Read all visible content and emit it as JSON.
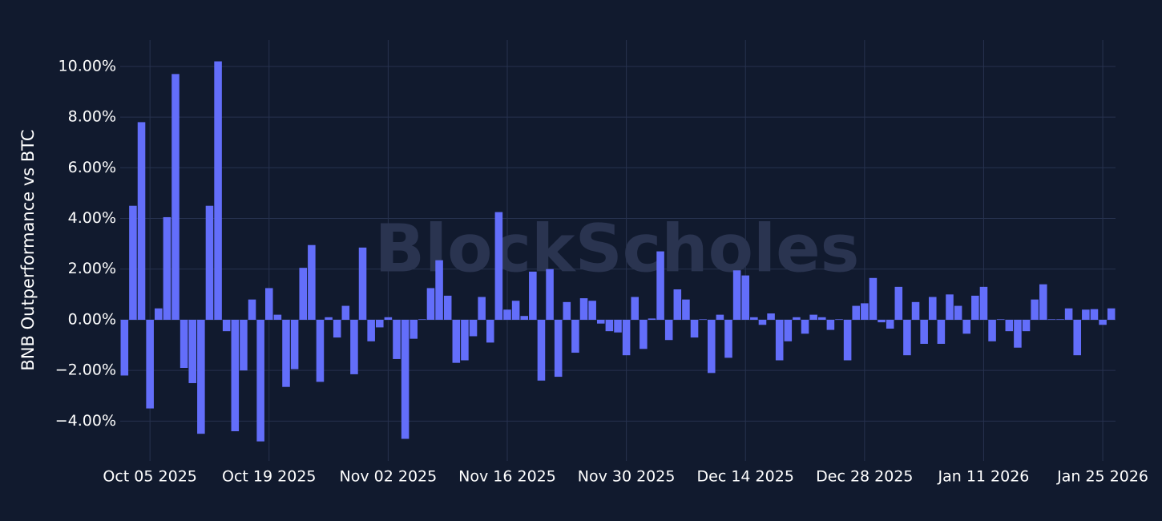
{
  "chart_data": {
    "type": "bar",
    "watermark": "BlockScholes",
    "y_label": "BNB Outperformance vs BTC",
    "color": "#636efa",
    "grid": true,
    "x": [
      "2025-10-02",
      "2025-10-03",
      "2025-10-04",
      "2025-10-05",
      "2025-10-06",
      "2025-10-07",
      "2025-10-08",
      "2025-10-09",
      "2025-10-10",
      "2025-10-11",
      "2025-10-12",
      "2025-10-13",
      "2025-10-14",
      "2025-10-15",
      "2025-10-16",
      "2025-10-17",
      "2025-10-18",
      "2025-10-19",
      "2025-10-20",
      "2025-10-21",
      "2025-10-22",
      "2025-10-23",
      "2025-10-24",
      "2025-10-25",
      "2025-10-26",
      "2025-10-27",
      "2025-10-28",
      "2025-10-29",
      "2025-10-30",
      "2025-10-31",
      "2025-11-01",
      "2025-11-02",
      "2025-11-03",
      "2025-11-04",
      "2025-11-05",
      "2025-11-06",
      "2025-11-07",
      "2025-11-08",
      "2025-11-09",
      "2025-11-10",
      "2025-11-11",
      "2025-11-12",
      "2025-11-13",
      "2025-11-14",
      "2025-11-15",
      "2025-11-16",
      "2025-11-17",
      "2025-11-18",
      "2025-11-19",
      "2025-11-20",
      "2025-11-21",
      "2025-11-22",
      "2025-11-23",
      "2025-11-24",
      "2025-11-25",
      "2025-11-26",
      "2025-11-27",
      "2025-11-28",
      "2025-11-29",
      "2025-11-30",
      "2025-12-01",
      "2025-12-02",
      "2025-12-03",
      "2025-12-04",
      "2025-12-05",
      "2025-12-06",
      "2025-12-07",
      "2025-12-08",
      "2025-12-09",
      "2025-12-10",
      "2025-12-11",
      "2025-12-12",
      "2025-12-13",
      "2025-12-14",
      "2025-12-15",
      "2025-12-16",
      "2025-12-17",
      "2025-12-18",
      "2025-12-19",
      "2025-12-20",
      "2025-12-21",
      "2025-12-22",
      "2025-12-23",
      "2025-12-24",
      "2025-12-25",
      "2025-12-26",
      "2025-12-27",
      "2025-12-28",
      "2025-12-29",
      "2025-12-30",
      "2025-12-31",
      "2026-01-01",
      "2026-01-02",
      "2026-01-03",
      "2026-01-04",
      "2026-01-05",
      "2026-01-06",
      "2026-01-07",
      "2026-01-08",
      "2026-01-09",
      "2026-01-10",
      "2026-01-11",
      "2026-01-12",
      "2026-01-13",
      "2026-01-14",
      "2026-01-15",
      "2026-01-16",
      "2026-01-17",
      "2026-01-18",
      "2026-01-19",
      "2026-01-20",
      "2026-01-21",
      "2026-01-22",
      "2026-01-23",
      "2026-01-24",
      "2026-01-25",
      "2026-01-26"
    ],
    "values": [
      -2.2,
      4.5,
      7.8,
      -3.5,
      0.45,
      4.05,
      9.7,
      -1.9,
      -2.5,
      -4.5,
      4.5,
      10.2,
      -0.45,
      -4.4,
      -2.0,
      0.8,
      -4.8,
      1.25,
      0.2,
      -2.65,
      -1.95,
      2.05,
      2.95,
      -2.45,
      0.1,
      -0.7,
      0.55,
      -2.15,
      2.85,
      -0.85,
      -0.3,
      0.1,
      -1.55,
      -4.7,
      -0.75,
      0.02,
      1.25,
      2.35,
      0.95,
      -1.7,
      -1.6,
      -0.65,
      0.9,
      -0.9,
      4.25,
      0.4,
      0.75,
      0.15,
      1.9,
      -2.4,
      2.0,
      -2.25,
      0.7,
      -1.3,
      0.85,
      0.75,
      -0.15,
      -0.45,
      -0.5,
      -1.4,
      0.9,
      -1.15,
      0.05,
      2.7,
      -0.8,
      1.2,
      0.8,
      -0.7,
      0.02,
      -2.1,
      0.2,
      -1.5,
      1.95,
      1.75,
      0.1,
      -0.2,
      0.25,
      -1.6,
      -0.85,
      0.1,
      -0.55,
      0.2,
      0.1,
      -0.4,
      0.02,
      -1.6,
      0.55,
      0.65,
      1.65,
      -0.1,
      -0.35,
      1.3,
      -1.4,
      0.7,
      -0.95,
      0.9,
      -0.95,
      1.0,
      0.55,
      -0.55,
      0.95,
      1.3,
      -0.85,
      0.02,
      -0.45,
      -1.1,
      -0.45,
      0.8,
      1.4,
      0.02,
      0.02,
      0.45,
      -1.4,
      0.4,
      0.42,
      -0.2,
      0.45
    ],
    "xlim": [
      "2025-10-01T12:00:00Z",
      "2026-01-26T12:00:00Z"
    ],
    "xticks": [
      {
        "value": "2025-10-05",
        "label": "Oct 05 2025"
      },
      {
        "value": "2025-10-19",
        "label": "Oct 19 2025"
      },
      {
        "value": "2025-11-02",
        "label": "Nov 02 2025"
      },
      {
        "value": "2025-11-16",
        "label": "Nov 16 2025"
      },
      {
        "value": "2025-11-30",
        "label": "Nov 30 2025"
      },
      {
        "value": "2025-12-14",
        "label": "Dec 14 2025"
      },
      {
        "value": "2025-12-28",
        "label": "Dec 28 2025"
      },
      {
        "value": "2026-01-11",
        "label": "Jan 11 2026"
      },
      {
        "value": "2026-01-25",
        "label": "Jan 25 2026"
      }
    ],
    "ylim": [
      -5.57,
      11.04
    ],
    "yticks": [
      {
        "value": -4,
        "label": "−4.00%"
      },
      {
        "value": -2,
        "label": "−2.00%"
      },
      {
        "value": 0,
        "label": "0.00%"
      },
      {
        "value": 2,
        "label": "2.00%"
      },
      {
        "value": 4,
        "label": "4.00%"
      },
      {
        "value": 6,
        "label": "6.00%"
      },
      {
        "value": 8,
        "label": "8.00%"
      },
      {
        "value": 10,
        "label": "10.00%"
      }
    ]
  }
}
